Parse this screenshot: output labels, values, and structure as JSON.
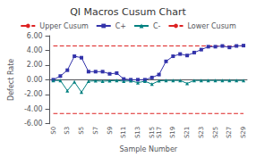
{
  "chart_data": {
    "type": "line",
    "title": "QI Macros Cusum Chart",
    "x_label": "Sample Number",
    "y_label": "Defect Rate",
    "categories": [
      "S0",
      null,
      "S3",
      null,
      "S5",
      null,
      "S7",
      null,
      "S9",
      null,
      "S11",
      null,
      "S13",
      null,
      "S15",
      "S17",
      null,
      "S19",
      null,
      "S21",
      null,
      "S23",
      null,
      "S25",
      null,
      "S27",
      null,
      "S29"
    ],
    "series": [
      {
        "name": "Upper Cusum",
        "color": "#dd2222",
        "line_style": "dashed",
        "marker": "none",
        "values": [
          4.6,
          4.6,
          4.6,
          4.6,
          4.6,
          4.6,
          4.6,
          4.6,
          4.6,
          4.6,
          4.6,
          4.6,
          4.6,
          4.6,
          4.6,
          4.6,
          4.6,
          4.6,
          4.6,
          4.6,
          4.6,
          4.6,
          4.6,
          4.6,
          4.6,
          4.6,
          4.6,
          4.6
        ]
      },
      {
        "name": "C+",
        "color": "#3333aa",
        "line_style": "solid",
        "marker": "square",
        "values": [
          0.0,
          0.5,
          1.3,
          3.2,
          3.0,
          1.1,
          1.1,
          1.1,
          0.8,
          0.9,
          0.1,
          0.0,
          0.0,
          0.0,
          0.3,
          0.7,
          2.5,
          3.2,
          3.5,
          3.3,
          3.7,
          4.1,
          4.5,
          4.5,
          4.6,
          4.4,
          4.6,
          4.65
        ]
      },
      {
        "name": "C-",
        "color": "#008080",
        "line_style": "solid",
        "marker": "triangle",
        "values": [
          -0.1,
          -0.1,
          -1.5,
          -0.3,
          -1.7,
          -0.2,
          -0.15,
          -0.2,
          -0.15,
          -0.1,
          -0.2,
          -0.15,
          -0.4,
          -0.2,
          -0.6,
          -0.15,
          -0.1,
          -0.1,
          -0.1,
          -0.5,
          -0.1,
          -0.1,
          -0.1,
          -0.1,
          -0.1,
          -0.1,
          -0.1,
          -0.1
        ]
      },
      {
        "name": "Lower Cusum",
        "color": "#dd2222",
        "line_style": "dashed",
        "marker": "none",
        "values": [
          -4.6,
          -4.6,
          -4.6,
          -4.6,
          -4.6,
          -4.6,
          -4.6,
          -4.6,
          -4.6,
          -4.6,
          -4.6,
          -4.6,
          -4.6,
          -4.6,
          -4.6,
          -4.6,
          -4.6,
          -4.6,
          -4.6,
          -4.6,
          -4.6,
          -4.6,
          -4.6,
          -4.6,
          -4.6,
          -4.6,
          -4.6,
          -4.6
        ]
      }
    ],
    "ylim": [
      -6.0,
      6.0
    ],
    "yticks": [
      {
        "value": -6.0,
        "label": "-6.00"
      },
      {
        "value": -4.0,
        "label": "-4.00"
      },
      {
        "value": -2.0,
        "label": "-2.00"
      },
      {
        "value": 0.0,
        "label": "0.00"
      },
      {
        "value": 2.0,
        "label": "2.00"
      },
      {
        "value": 4.0,
        "label": "4.00"
      },
      {
        "value": 6.0,
        "label": "6.00"
      }
    ],
    "grid": false,
    "legend": "top"
  }
}
